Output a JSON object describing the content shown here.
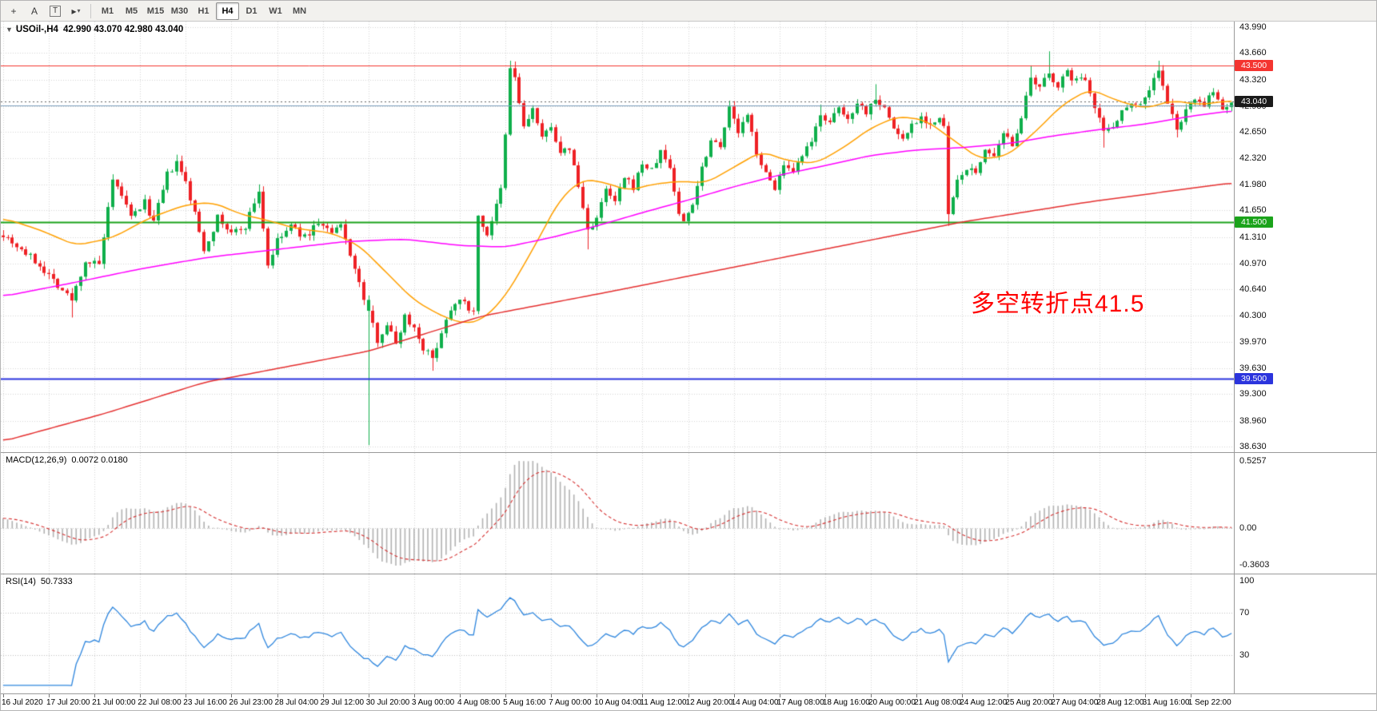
{
  "toolbar": {
    "icons": [
      {
        "name": "crosshair-icon",
        "glyph": "+",
        "boxed": false,
        "caret": false
      },
      {
        "name": "text-label-icon",
        "glyph": "A",
        "boxed": false,
        "caret": false
      },
      {
        "name": "text-box-icon",
        "glyph": "T",
        "boxed": true,
        "caret": false
      },
      {
        "name": "cursor-tool-icon",
        "glyph": "▸",
        "boxed": false,
        "caret": true
      }
    ],
    "timeframes": [
      {
        "label": "M1",
        "active": false
      },
      {
        "label": "M5",
        "active": false
      },
      {
        "label": "M15",
        "active": false
      },
      {
        "label": "M30",
        "active": false
      },
      {
        "label": "H1",
        "active": false
      },
      {
        "label": "H4",
        "active": true
      },
      {
        "label": "D1",
        "active": false
      },
      {
        "label": "W1",
        "active": false
      },
      {
        "label": "MN",
        "active": false
      }
    ]
  },
  "header": {
    "collapse_glyph": "▼",
    "symbol_period": "USOil-,H4",
    "ohlc": "42.990 43.070 42.980 43.040"
  },
  "chart_data": {
    "type": "candlestick",
    "symbol": "USOil-",
    "timeframe": "H4",
    "ohlc_display": {
      "open": "42.990",
      "high": "43.070",
      "low": "42.980",
      "close": "43.040"
    },
    "bars": 270,
    "seed": 7,
    "grid_color": "#d6d6d6",
    "candle_colors": {
      "up": "#0faf4b",
      "down": "#ee2125"
    },
    "price_axis": {
      "max": 44.06,
      "min": 38.56,
      "ticks": [
        43.99,
        43.66,
        43.32,
        42.98,
        42.65,
        42.32,
        41.98,
        41.65,
        41.31,
        40.97,
        40.64,
        40.3,
        39.97,
        39.63,
        39.3,
        38.96,
        38.63
      ]
    },
    "price_path_anchors": [
      [
        0,
        41.35
      ],
      [
        4,
        41.15
      ],
      [
        8,
        40.95
      ],
      [
        12,
        40.7
      ],
      [
        15,
        40.5
      ],
      [
        18,
        41.0
      ],
      [
        21,
        40.95
      ],
      [
        24,
        42.0
      ],
      [
        26,
        41.85
      ],
      [
        28,
        41.55
      ],
      [
        31,
        41.75
      ],
      [
        33,
        41.5
      ],
      [
        36,
        42.1
      ],
      [
        38,
        42.25
      ],
      [
        40,
        42.0
      ],
      [
        42,
        41.6
      ],
      [
        44,
        41.15
      ],
      [
        47,
        41.55
      ],
      [
        50,
        41.35
      ],
      [
        53,
        41.45
      ],
      [
        56,
        41.9
      ],
      [
        58,
        40.95
      ],
      [
        60,
        41.25
      ],
      [
        63,
        41.45
      ],
      [
        66,
        41.3
      ],
      [
        69,
        41.5
      ],
      [
        72,
        41.35
      ],
      [
        74,
        41.45
      ],
      [
        76,
        41.1
      ],
      [
        78,
        40.7
      ],
      [
        80,
        40.35
      ],
      [
        82,
        40.0
      ],
      [
        84,
        40.2
      ],
      [
        86,
        39.95
      ],
      [
        88,
        40.3
      ],
      [
        90,
        40.15
      ],
      [
        92,
        39.9
      ],
      [
        94,
        39.75
      ],
      [
        96,
        40.1
      ],
      [
        98,
        40.4
      ],
      [
        100,
        40.55
      ],
      [
        102,
        40.35
      ],
      [
        103,
        40.4
      ],
      [
        104,
        41.55
      ],
      [
        106,
        41.35
      ],
      [
        108,
        41.7
      ],
      [
        109,
        41.9
      ],
      [
        110,
        42.6
      ],
      [
        111,
        43.45
      ],
      [
        112,
        43.35
      ],
      [
        114,
        42.7
      ],
      [
        116,
        42.95
      ],
      [
        118,
        42.55
      ],
      [
        120,
        42.75
      ],
      [
        122,
        42.35
      ],
      [
        124,
        42.45
      ],
      [
        126,
        41.95
      ],
      [
        128,
        41.4
      ],
      [
        130,
        41.55
      ],
      [
        132,
        41.9
      ],
      [
        134,
        41.75
      ],
      [
        136,
        42.05
      ],
      [
        138,
        41.95
      ],
      [
        140,
        42.25
      ],
      [
        142,
        42.15
      ],
      [
        144,
        42.4
      ],
      [
        146,
        42.2
      ],
      [
        148,
        41.6
      ],
      [
        149,
        41.5
      ],
      [
        151,
        41.75
      ],
      [
        153,
        42.2
      ],
      [
        155,
        42.55
      ],
      [
        157,
        42.5
      ],
      [
        159,
        42.95
      ],
      [
        161,
        42.65
      ],
      [
        163,
        42.85
      ],
      [
        165,
        42.4
      ],
      [
        167,
        42.1
      ],
      [
        169,
        41.95
      ],
      [
        171,
        42.2
      ],
      [
        173,
        42.1
      ],
      [
        175,
        42.35
      ],
      [
        177,
        42.5
      ],
      [
        179,
        42.9
      ],
      [
        181,
        42.75
      ],
      [
        183,
        42.95
      ],
      [
        185,
        42.8
      ],
      [
        187,
        43.05
      ],
      [
        189,
        42.9
      ],
      [
        191,
        43.1
      ],
      [
        193,
        42.95
      ],
      [
        195,
        42.7
      ],
      [
        197,
        42.55
      ],
      [
        199,
        42.75
      ],
      [
        201,
        42.85
      ],
      [
        203,
        42.75
      ],
      [
        205,
        42.8
      ],
      [
        206,
        42.7
      ],
      [
        207,
        41.6
      ],
      [
        209,
        42.0
      ],
      [
        211,
        42.2
      ],
      [
        213,
        42.1
      ],
      [
        215,
        42.45
      ],
      [
        217,
        42.3
      ],
      [
        219,
        42.6
      ],
      [
        221,
        42.5
      ],
      [
        223,
        42.85
      ],
      [
        225,
        43.3
      ],
      [
        227,
        43.2
      ],
      [
        229,
        43.4
      ],
      [
        231,
        43.25
      ],
      [
        233,
        43.4
      ],
      [
        235,
        43.3
      ],
      [
        237,
        43.35
      ],
      [
        239,
        43.0
      ],
      [
        241,
        42.65
      ],
      [
        243,
        42.75
      ],
      [
        245,
        42.9
      ],
      [
        247,
        43.05
      ],
      [
        249,
        43.0
      ],
      [
        251,
        43.2
      ],
      [
        253,
        43.45
      ],
      [
        255,
        43.0
      ],
      [
        257,
        42.7
      ],
      [
        259,
        42.9
      ],
      [
        261,
        43.1
      ],
      [
        263,
        43.0
      ],
      [
        265,
        43.15
      ],
      [
        267,
        42.95
      ],
      [
        269,
        43.04
      ]
    ],
    "wick_events": [
      {
        "bar": 15,
        "low": 40.28
      },
      {
        "bar": 38,
        "high": 42.36
      },
      {
        "bar": 56,
        "high": 41.98
      },
      {
        "bar": 80,
        "low": 38.65,
        "dir": "up"
      },
      {
        "bar": 94,
        "low": 39.6
      },
      {
        "bar": 111,
        "high": 43.56
      },
      {
        "bar": 112,
        "high": 43.55
      },
      {
        "bar": 128,
        "low": 41.15
      },
      {
        "bar": 159,
        "high": 43.05
      },
      {
        "bar": 179,
        "high": 43.0
      },
      {
        "bar": 191,
        "high": 43.26
      },
      {
        "bar": 207,
        "low": 41.45,
        "dir": "down"
      },
      {
        "bar": 225,
        "high": 43.5
      },
      {
        "bar": 229,
        "high": 43.68
      },
      {
        "bar": 241,
        "low": 42.45
      },
      {
        "bar": 253,
        "high": 43.56
      },
      {
        "bar": 257,
        "low": 42.58
      }
    ],
    "moving_averages": [
      {
        "name": "ma-fast",
        "color": "#ffa000",
        "points": [
          [
            0,
            41.55
          ],
          [
            8,
            41.4
          ],
          [
            16,
            41.2
          ],
          [
            24,
            41.3
          ],
          [
            32,
            41.55
          ],
          [
            40,
            41.72
          ],
          [
            46,
            41.75
          ],
          [
            52,
            41.6
          ],
          [
            58,
            41.52
          ],
          [
            64,
            41.42
          ],
          [
            72,
            41.36
          ],
          [
            78,
            41.2
          ],
          [
            84,
            40.85
          ],
          [
            90,
            40.5
          ],
          [
            96,
            40.3
          ],
          [
            101,
            40.2
          ],
          [
            105,
            40.25
          ],
          [
            110,
            40.55
          ],
          [
            116,
            41.15
          ],
          [
            122,
            41.8
          ],
          [
            127,
            42.05
          ],
          [
            132,
            42.0
          ],
          [
            137,
            41.9
          ],
          [
            142,
            41.98
          ],
          [
            148,
            42.02
          ],
          [
            154,
            42.0
          ],
          [
            160,
            42.2
          ],
          [
            166,
            42.4
          ],
          [
            172,
            42.28
          ],
          [
            178,
            42.25
          ],
          [
            184,
            42.45
          ],
          [
            190,
            42.7
          ],
          [
            196,
            42.85
          ],
          [
            202,
            42.8
          ],
          [
            208,
            42.55
          ],
          [
            214,
            42.3
          ],
          [
            220,
            42.35
          ],
          [
            226,
            42.65
          ],
          [
            232,
            43.0
          ],
          [
            238,
            43.2
          ],
          [
            244,
            43.05
          ],
          [
            250,
            42.95
          ],
          [
            256,
            43.05
          ],
          [
            262,
            43.0
          ],
          [
            269,
            43.05
          ]
        ]
      },
      {
        "name": "ma-mid",
        "color": "#ff00ff",
        "points": [
          [
            0,
            40.55
          ],
          [
            15,
            40.72
          ],
          [
            30,
            40.9
          ],
          [
            45,
            41.05
          ],
          [
            60,
            41.15
          ],
          [
            75,
            41.25
          ],
          [
            88,
            41.28
          ],
          [
            100,
            41.2
          ],
          [
            110,
            41.18
          ],
          [
            120,
            41.3
          ],
          [
            130,
            41.45
          ],
          [
            140,
            41.62
          ],
          [
            150,
            41.78
          ],
          [
            160,
            41.95
          ],
          [
            170,
            42.1
          ],
          [
            180,
            42.22
          ],
          [
            190,
            42.35
          ],
          [
            200,
            42.42
          ],
          [
            210,
            42.45
          ],
          [
            220,
            42.5
          ],
          [
            230,
            42.6
          ],
          [
            240,
            42.68
          ],
          [
            250,
            42.75
          ],
          [
            260,
            42.85
          ],
          [
            269,
            42.92
          ]
        ]
      },
      {
        "name": "ma-slow",
        "color": "#e53030",
        "points": [
          [
            0,
            38.7
          ],
          [
            22,
            39.05
          ],
          [
            44,
            39.45
          ],
          [
            62,
            39.65
          ],
          [
            80,
            39.85
          ],
          [
            105,
            40.3
          ],
          [
            132,
            40.6
          ],
          [
            158,
            40.9
          ],
          [
            184,
            41.2
          ],
          [
            210,
            41.5
          ],
          [
            237,
            41.75
          ],
          [
            269,
            42.0
          ]
        ]
      }
    ],
    "hlines": [
      {
        "price": 43.5,
        "color": "#f43530",
        "width": 1,
        "tag": "43.500"
      },
      {
        "price": 42.99,
        "color": "#7a9ebc",
        "width": 1,
        "tag": null
      },
      {
        "price": 41.5,
        "color": "#1ba31b",
        "width": 2,
        "tag": "41.500"
      },
      {
        "price": 39.5,
        "color": "#2b34dd",
        "width": 2,
        "tag": "39.500"
      }
    ],
    "bid": {
      "price": 43.04,
      "tag": "43.040",
      "tag_bg": "#1a1a1a"
    },
    "annotation": {
      "text": "多空转折点41.5",
      "color": "#ff0000"
    },
    "time_axis": {
      "bars_per_label": 10,
      "labels": [
        "16 Jul 2020",
        "17 Jul 20:00",
        "21 Jul 00:00",
        "22 Jul 08:00",
        "23 Jul 16:00",
        "26 Jul 23:00",
        "28 Jul 04:00",
        "29 Jul 12:00",
        "30 Jul 20:00",
        "3 Aug 00:00",
        "4 Aug 08:00",
        "5 Aug 16:00",
        "7 Aug 00:00",
        "10 Aug 04:00",
        "11 Aug 12:00",
        "12 Aug 20:00",
        "14 Aug 04:00",
        "17 Aug 08:00",
        "18 Aug 16:00",
        "20 Aug 00:00",
        "21 Aug 08:00",
        "24 Aug 12:00",
        "25 Aug 20:00",
        "27 Aug 04:00",
        "28 Aug 12:00",
        "31 Aug 16:00",
        "1 Sep 22:00"
      ]
    },
    "macd": {
      "label": "MACD(12,26,9)",
      "values_text": "0.0072 0.0180",
      "fast": 12,
      "slow": 26,
      "signal": 9,
      "hist_color": "#b2b2b2",
      "signal_color": "#d63030",
      "scale_labels": {
        "top": "0.5257",
        "zero": "0.00",
        "bottom": "-0.3603"
      }
    },
    "rsi": {
      "label": "RSI(14)",
      "value_text": "50.7333",
      "period": 14,
      "line_color": "#2e86de",
      "levels": [
        70,
        30
      ],
      "scale_labels": {
        "top": "100",
        "upper": "70",
        "lower": "30"
      }
    }
  }
}
